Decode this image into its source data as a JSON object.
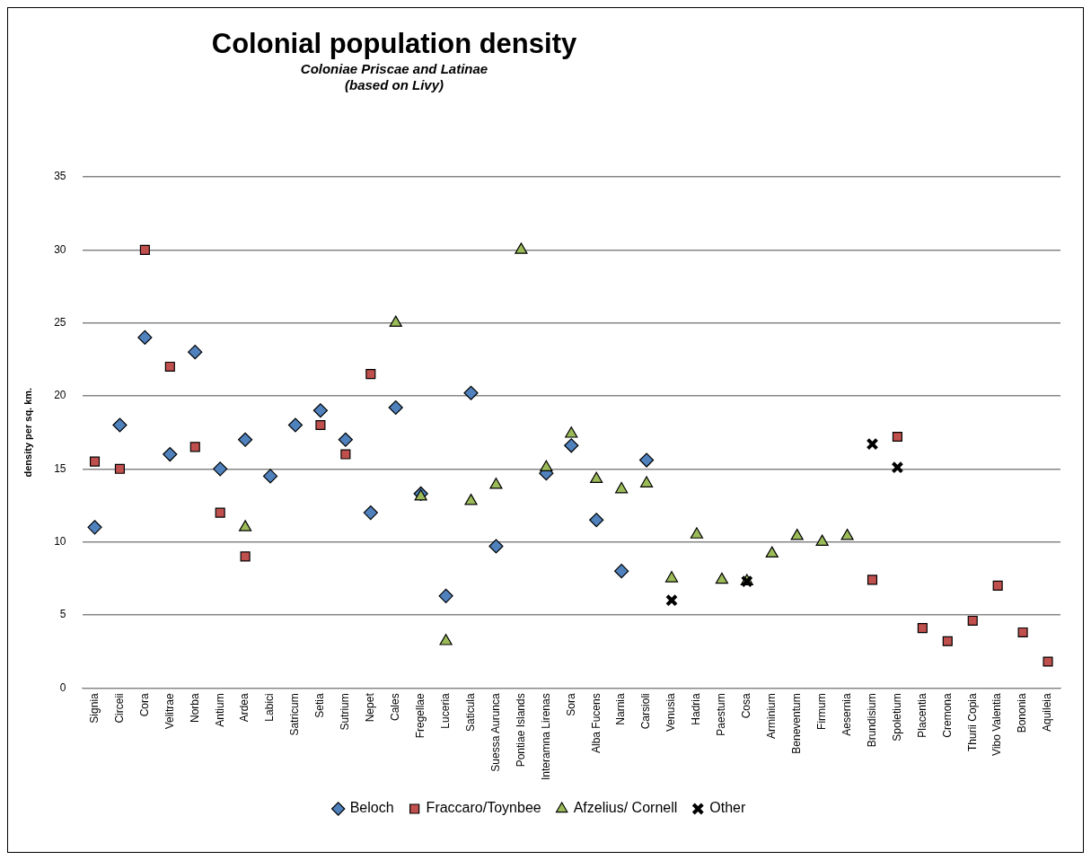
{
  "chart_data": {
    "type": "scatter",
    "title": "Colonial population density",
    "subtitle": "Coloniae Priscae and Latinae\n(based on Livy)",
    "ylabel": "density per sq. km.",
    "categories": [
      "Signia",
      "Circeii",
      "Cora",
      "Velitrae",
      "Norba",
      "Antium",
      "Ardea",
      "Labici",
      "Satricum",
      "Setia",
      "Sutrium",
      "Nepet",
      "Cales",
      "Fregellae",
      "Luceria",
      "Saticula",
      "Suessa Aurunca",
      "Pontiae Islands",
      "Interamna Lirenas",
      "Sora",
      "Alba Fucens",
      "Narnia",
      "Carsioli",
      "Venusia",
      "Hadria",
      "Paestum",
      "Cosa",
      "Arminium",
      "Beneventum",
      "Firmum",
      "Aesernia",
      "Brundisium",
      "Spoletium",
      "Placentia",
      "Cremona",
      "Thurii Copia",
      "Vibo Valentia",
      "Bononia",
      "Aquileia"
    ],
    "series": [
      {
        "name": "Beloch",
        "color": "#4f81bd",
        "marker": "diamond",
        "values": [
          11,
          18,
          24,
          16,
          23,
          15,
          17,
          14.5,
          18,
          19,
          17,
          12,
          19.2,
          13.3,
          6.3,
          20.2,
          9.7,
          null,
          14.7,
          16.6,
          11.5,
          8,
          15.6,
          null,
          null,
          null,
          null,
          null,
          null,
          null,
          null,
          null,
          null,
          null,
          null,
          null,
          null,
          null,
          null
        ]
      },
      {
        "name": "Fraccaro/Toynbee",
        "color": "#c0504d",
        "marker": "square",
        "values": [
          15.5,
          15,
          30,
          22,
          16.5,
          12,
          9,
          null,
          null,
          18,
          16,
          21.5,
          null,
          null,
          null,
          null,
          null,
          null,
          null,
          null,
          null,
          null,
          null,
          null,
          null,
          null,
          null,
          null,
          null,
          null,
          null,
          7.4,
          17.2,
          4.1,
          3.2,
          4.6,
          7,
          3.8,
          1.8
        ]
      },
      {
        "name": "Afzelius/ Cornell",
        "color": "#9bbb59",
        "marker": "triangle",
        "values": [
          null,
          null,
          null,
          null,
          null,
          null,
          11,
          null,
          null,
          null,
          null,
          null,
          25,
          13.1,
          3.2,
          12.8,
          13.9,
          30,
          15.1,
          17.4,
          14.3,
          13.6,
          14,
          7.5,
          10.5,
          7.4,
          7.3,
          9.2,
          10.4,
          10,
          10.4,
          null,
          null,
          null,
          null,
          null,
          null,
          null,
          null
        ]
      },
      {
        "name": "Other",
        "color": "#000000",
        "marker": "cross",
        "values": [
          null,
          null,
          null,
          null,
          null,
          null,
          null,
          null,
          null,
          null,
          null,
          null,
          null,
          null,
          null,
          null,
          null,
          null,
          null,
          null,
          null,
          null,
          null,
          6,
          null,
          null,
          7.3,
          null,
          null,
          null,
          null,
          16.7,
          15.1,
          null,
          null,
          null,
          null,
          null,
          null
        ]
      }
    ],
    "ylim": [
      0,
      35
    ],
    "yticks": [
      0,
      5,
      10,
      15,
      20,
      25,
      30,
      35
    ],
    "grid": "y",
    "legend": "bottom"
  }
}
